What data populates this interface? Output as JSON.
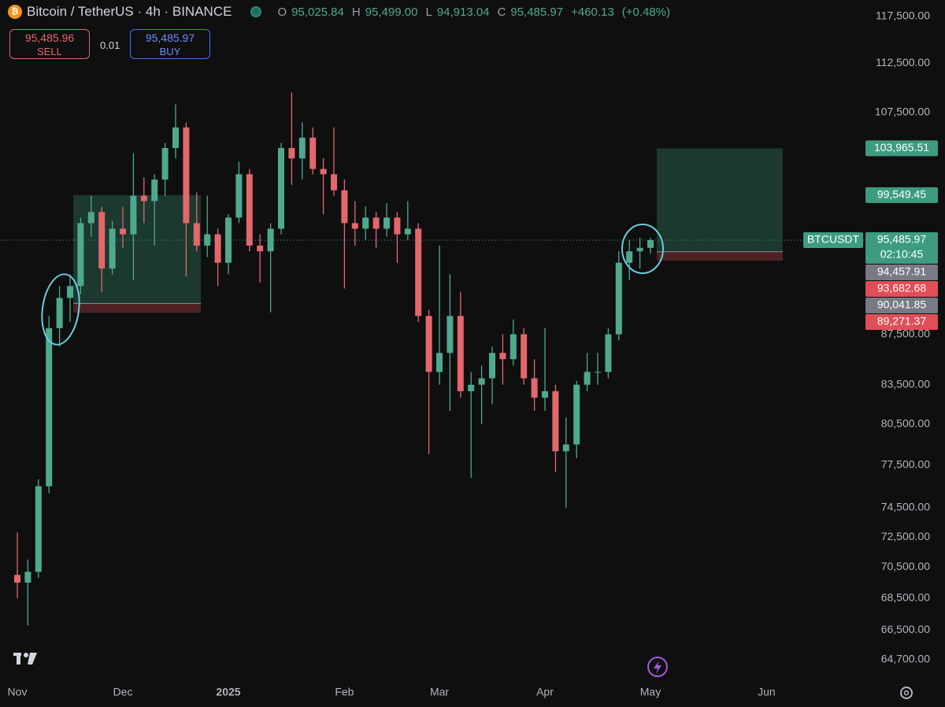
{
  "chart_data": {
    "type": "candlestick",
    "title": "Bitcoin / TetherUS · 4h · BINANCE",
    "ohlc": [
      {
        "key": "O",
        "value": {
          "value": 95025.84,
          "label": "95,025.84"
        }
      },
      {
        "key": "H",
        "value": {
          "value": 95499.0,
          "label": "95,499.00"
        }
      },
      {
        "key": "L",
        "value": {
          "value": 94913.04,
          "label": "94,913.04"
        }
      },
      {
        "key": "C",
        "value": {
          "value": 95485.97,
          "label": "95,485.97"
        }
      }
    ],
    "change": {
      "value": 460.13,
      "label": "+460.13"
    },
    "change_pct": {
      "value": 0.48,
      "label": "(+0.48%)"
    },
    "trade_panel": {
      "sell": {
        "value": 95485.96,
        "label": "95,485.96"
      },
      "sell_text": "SELL",
      "quantity": 0.01,
      "buy": {
        "value": 95485.97,
        "label": "95,485.97"
      },
      "buy_text": "BUY"
    },
    "categories": [
      "Nov",
      null,
      null,
      null,
      null,
      null,
      null,
      null,
      null,
      null,
      "Dec",
      null,
      null,
      null,
      null,
      null,
      null,
      null,
      null,
      null,
      "2025",
      null,
      null,
      null,
      null,
      null,
      null,
      null,
      null,
      null,
      null,
      "Feb",
      null,
      null,
      null,
      null,
      null,
      null,
      null,
      null,
      "Mar",
      null,
      null,
      null,
      null,
      null,
      null,
      null,
      null,
      null,
      "Apr",
      null,
      null,
      null,
      null,
      null,
      null,
      null,
      null,
      null,
      "May",
      null,
      null,
      null,
      null,
      null,
      null,
      null,
      null,
      null,
      null,
      "Jun"
    ],
    "open": [
      70000,
      69500,
      70200,
      76000,
      88000,
      90500,
      91500,
      97000,
      98000,
      93000,
      96500,
      96000,
      99500,
      99000,
      101000,
      104000,
      106000,
      97000,
      95000,
      96000,
      93500,
      97500,
      101500,
      95000,
      94500,
      96500,
      104000,
      103000,
      105000,
      102000,
      101500,
      100000,
      97000,
      96500,
      97500,
      96500,
      97500,
      96000,
      96500,
      89000,
      84500,
      86000,
      89000,
      83000,
      83500,
      84000,
      86000,
      85500,
      87500,
      84000,
      82500,
      83000,
      78500,
      79000,
      83500,
      84500,
      84500,
      87500,
      93500,
      94500,
      94800,
      null,
      null,
      null,
      null,
      null,
      null,
      null,
      null,
      null,
      null,
      null
    ],
    "high": [
      72800,
      71000,
      76500,
      89000,
      91500,
      92500,
      97500,
      99500,
      98500,
      97200,
      98500,
      103500,
      101200,
      101500,
      104500,
      108300,
      106500,
      99800,
      99500,
      96500,
      97800,
      102700,
      102000,
      96000,
      97000,
      104500,
      109500,
      106500,
      106000,
      103000,
      106000,
      101000,
      99000,
      98500,
      98000,
      98800,
      98000,
      99000,
      97000,
      89500,
      95000,
      92500,
      91000,
      84500,
      85000,
      86500,
      87500,
      88700,
      88000,
      85500,
      88000,
      83500,
      81000,
      83800,
      86000,
      86000,
      88000,
      94500,
      95500,
      95700,
      95700,
      null,
      null,
      null,
      null,
      null,
      null,
      null,
      null,
      null,
      null,
      null
    ],
    "low": [
      68500,
      66800,
      69800,
      75500,
      86500,
      88500,
      90800,
      95800,
      91000,
      92500,
      94800,
      92000,
      97000,
      95000,
      99500,
      103000,
      92300,
      94500,
      94000,
      91500,
      92500,
      97000,
      94500,
      91800,
      89300,
      96000,
      100500,
      101000,
      101500,
      97800,
      99500,
      91300,
      95000,
      95500,
      94800,
      95800,
      93500,
      95500,
      88500,
      78300,
      83500,
      81500,
      82500,
      76600,
      80500,
      82000,
      83500,
      85000,
      83500,
      81500,
      81500,
      77000,
      74500,
      78000,
      83000,
      83500,
      84000,
      87000,
      92000,
      93000,
      94300,
      null,
      null,
      null,
      null,
      null,
      null,
      null,
      null,
      null,
      null,
      null
    ],
    "close": [
      69500,
      70200,
      76000,
      88000,
      90500,
      91500,
      97000,
      98000,
      93000,
      96500,
      96000,
      99500,
      99000,
      101000,
      104000,
      106000,
      97000,
      95000,
      96000,
      93500,
      97500,
      101500,
      95000,
      94500,
      96500,
      104000,
      103000,
      105000,
      102000,
      101500,
      100000,
      97000,
      96500,
      97500,
      96500,
      97500,
      96000,
      96500,
      89000,
      84500,
      86000,
      89000,
      83000,
      83500,
      84000,
      86000,
      85500,
      87500,
      84000,
      82500,
      83000,
      78500,
      79000,
      83500,
      84500,
      84500,
      87500,
      93500,
      94500,
      94800,
      95485.97,
      null,
      null,
      null,
      null,
      null,
      null,
      null,
      null,
      null,
      null,
      null
    ],
    "up_color": "#4fa98f",
    "down_color": "#e3676d",
    "log_scale": true,
    "grid": false,
    "ylim": [
      63670,
      119300
    ],
    "yticks": [
      {
        "value": 117500,
        "label": "117,500.00"
      },
      {
        "value": 112500,
        "label": "112,500.00"
      },
      {
        "value": 107500,
        "label": "107,500.00"
      },
      {
        "value": 87500,
        "label": "87,500.00"
      },
      {
        "value": 83500,
        "label": "83,500.00"
      },
      {
        "value": 80500,
        "label": "80,500.00"
      },
      {
        "value": 77500,
        "label": "77,500.00"
      },
      {
        "value": 74500,
        "label": "74,500.00"
      },
      {
        "value": 72500,
        "label": "72,500.00"
      },
      {
        "value": 70500,
        "label": "70,500.00"
      },
      {
        "value": 68500,
        "label": "68,500.00"
      },
      {
        "value": 66500,
        "label": "66,500.00"
      },
      {
        "value": 64700,
        "label": "64,700.00"
      }
    ],
    "current_price": {
      "value": 95485.97,
      "label": "95,485.97"
    },
    "symbol": "BTCUSDT",
    "countdown": "02:10:45",
    "positions": [
      {
        "target": {
          "value": 99549.45,
          "label": "99,549.45"
        },
        "entry": {
          "value": 90041.85,
          "label": "90,041.85"
        },
        "stop": {
          "value": 89271.37,
          "label": "89,271.37"
        }
      },
      {
        "target": {
          "value": 103965.51,
          "label": "103,965.51"
        },
        "entry": {
          "value": 94457.91,
          "label": "94,457.91"
        },
        "stop": {
          "value": 93682.68,
          "label": "93,682.68"
        }
      }
    ]
  }
}
